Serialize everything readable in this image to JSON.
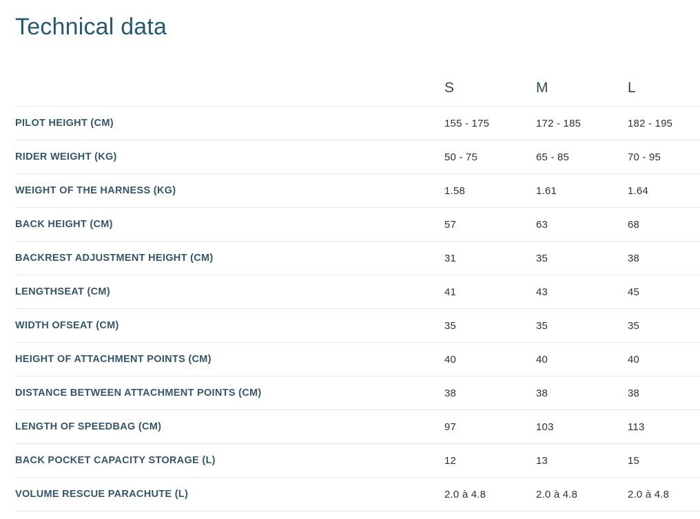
{
  "page": {
    "title": "Technical data"
  },
  "table": {
    "size_headers": [
      "S",
      "M",
      "L"
    ],
    "rows": [
      {
        "label": "PILOT HEIGHT (CM)",
        "values": [
          "155 - 175",
          "172 - 185",
          "182 - 195"
        ]
      },
      {
        "label": "RIDER WEIGHT (KG)",
        "values": [
          "50 - 75",
          "65 - 85",
          "70 - 95"
        ]
      },
      {
        "label": "WEIGHT OF THE HARNESS (KG)",
        "values": [
          "1.58",
          "1.61",
          "1.64"
        ]
      },
      {
        "label": "BACK HEIGHT (CM)",
        "values": [
          "57",
          "63",
          "68"
        ]
      },
      {
        "label": "BACKREST ADJUSTMENT HEIGHT (CM)",
        "values": [
          "31",
          "35",
          "38"
        ]
      },
      {
        "label": "LENGTHSEAT (CM)",
        "values": [
          "41",
          "43",
          "45"
        ]
      },
      {
        "label": "WIDTH OFSEAT (CM)",
        "values": [
          "35",
          "35",
          "35"
        ]
      },
      {
        "label": "HEIGHT OF ATTACHMENT POINTS (CM)",
        "values": [
          "40",
          "40",
          "40"
        ]
      },
      {
        "label": "DISTANCE BETWEEN ATTACHMENT POINTS (CM)",
        "values": [
          "38",
          "38",
          "38"
        ]
      },
      {
        "label": "LENGTH OF SPEEDBAG (CM)",
        "values": [
          "97",
          "103",
          "113"
        ]
      },
      {
        "label": "BACK POCKET CAPACITY STORAGE (L)",
        "values": [
          "12",
          "13",
          "15"
        ]
      },
      {
        "label": "VOLUME RESCUE PARACHUTE (L)",
        "values": [
          "2.0 à 4.8",
          "2.0 à 4.8",
          "2.0 à 4.8"
        ]
      }
    ]
  },
  "colors": {
    "title": "#275a72",
    "size_header": "#2d4a5f",
    "row_label": "#33566b",
    "cell_value": "#2f2f2f",
    "divider": "#e7e7e7",
    "background": "#ffffff"
  }
}
